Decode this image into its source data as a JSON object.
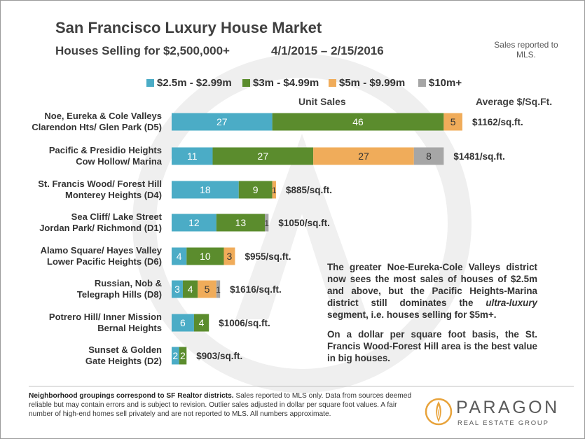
{
  "title": "San Francisco Luxury House Market",
  "subtitle": "Houses Selling for $2,500,000+",
  "date_range": "4/1/2015 – 2/15/2016",
  "note": "Sales reported to MLS.",
  "column_headers": {
    "units": "Unit Sales",
    "avg": "Average $/Sq.Ft."
  },
  "chart_data": {
    "type": "bar",
    "orientation": "horizontal",
    "stacked": true,
    "categories": [
      [
        "Noe, Eureka & Cole Valleys",
        "Clarendon Hts/ Glen Park (D5)"
      ],
      [
        "Pacific & Presidio Heights",
        "Cow Hollow/ Marina"
      ],
      [
        "St. Francis Wood/ Forest Hill",
        "Monterey Heights (D4)"
      ],
      [
        "Sea Cliff/ Lake Street",
        "Jordan Park/ Richmond (D1)"
      ],
      [
        "Alamo Square/ Hayes Valley",
        "Lower Pacific Heights (D6)"
      ],
      [
        "Russian, Nob &",
        "Telegraph Hills (D8)"
      ],
      [
        "Potrero Hill/ Inner Mission",
        "Bernal Heights"
      ],
      [
        "Sunset & Golden",
        "Gate Heights (D2)"
      ]
    ],
    "series": [
      {
        "name": "$2.5m - $2.99m",
        "color": "#4bacc6",
        "values": [
          27,
          11,
          18,
          12,
          4,
          3,
          6,
          2
        ]
      },
      {
        "name": "$3m - $4.99m",
        "color": "#5b8c2d",
        "values": [
          46,
          27,
          9,
          13,
          10,
          4,
          4,
          2
        ]
      },
      {
        "name": "$5m - $9.99m",
        "color": "#f0ac5a",
        "values": [
          5,
          27,
          1,
          0,
          3,
          5,
          0,
          0
        ]
      },
      {
        "name": "$10m+",
        "color": "#a6a6a6",
        "values": [
          0,
          8,
          0,
          1,
          0,
          1,
          0,
          0
        ]
      }
    ],
    "bar_labels": [
      [
        "27",
        "46",
        "5",
        ""
      ],
      [
        "11",
        "27",
        "27",
        "8"
      ],
      [
        "18",
        "9",
        "1",
        ""
      ],
      [
        "12",
        "13",
        "",
        "1"
      ],
      [
        "4",
        "10",
        "3",
        ""
      ],
      [
        "3",
        "4",
        "5",
        "1"
      ],
      [
        "6",
        "4",
        "",
        ""
      ],
      [
        "2",
        "2",
        "",
        ""
      ]
    ],
    "avg_price_per_sqft": [
      "$1162/sq.ft.",
      "$1481/sq.ft.",
      "$885/sq.ft.",
      "$1050/sq.ft.",
      "$955/sq.ft.",
      "$1616/sq.ft.",
      "$1006/sq.ft.",
      "$903/sq.ft."
    ],
    "legend_position": "top",
    "grid": false
  },
  "blurb": {
    "p1_before": "The greater Noe-Eureka-Cole Valleys district now sees the most sales of houses of $2.5m and above, but the Pacific Heights-Marina district still dominates the",
    "p1_emph": "ultra-luxury",
    "p1_after": "segment, i.e. houses selling for $5m+.",
    "p2": "On a dollar per square foot basis, the St. Francis Wood-Forest Hill area is the best value in big houses."
  },
  "footer": {
    "bold": "Neighborhood groupings correspond to SF Realtor districts.",
    "text": "Sales reported to MLS only. Data from sources deemed reliable but may contain errors and is subject to revision. Outlier sales adjusted in dollar per square foot values. A fair number of high-end homes sell privately and are not reported to MLS. All numbers approximate."
  },
  "logo": {
    "name": "PARAGON",
    "tagline": "REAL ESTATE GROUP"
  }
}
